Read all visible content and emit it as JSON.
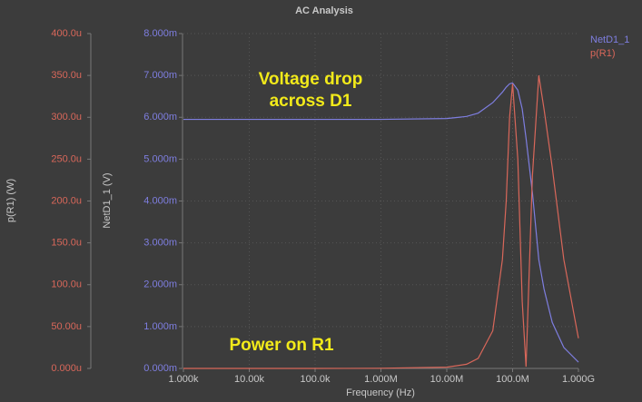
{
  "chart_data": {
    "type": "line",
    "title": "AC Analysis",
    "xlabel": "Frequency (Hz)",
    "ylabel": "NetD1_1 (V)",
    "y2label": "p(R1) (W)",
    "xscale": "log",
    "grid": true,
    "legend": "top-right",
    "xlim": [
      1000,
      1000000000
    ],
    "xticks": [
      {
        "value": 1000,
        "label": "1.000k"
      },
      {
        "value": 10000,
        "label": "10.00k"
      },
      {
        "value": 100000,
        "label": "100.0k"
      },
      {
        "value": 1000000,
        "label": "1.000M"
      },
      {
        "value": 10000000,
        "label": "10.00M"
      },
      {
        "value": 100000000,
        "label": "100.0M"
      },
      {
        "value": 1000000000,
        "label": "1.000G"
      }
    ],
    "ylim": [
      0,
      0.008
    ],
    "yticks": [
      {
        "value": 0,
        "label": "0.000m"
      },
      {
        "value": 0.001,
        "label": "1.000m"
      },
      {
        "value": 0.002,
        "label": "2.000m"
      },
      {
        "value": 0.003,
        "label": "3.000m"
      },
      {
        "value": 0.004,
        "label": "4.000m"
      },
      {
        "value": 0.005,
        "label": "5.000m"
      },
      {
        "value": 0.006,
        "label": "6.000m"
      },
      {
        "value": 0.007,
        "label": "7.000m"
      },
      {
        "value": 0.008,
        "label": "8.000m"
      }
    ],
    "y2lim": [
      0,
      0.0004
    ],
    "y2ticks": [
      {
        "value": 0,
        "label": "0.000u"
      },
      {
        "value": 5e-05,
        "label": "50.00u"
      },
      {
        "value": 0.0001,
        "label": "100.0u"
      },
      {
        "value": 0.00015,
        "label": "150.0u"
      },
      {
        "value": 0.0002,
        "label": "200.0u"
      },
      {
        "value": 0.00025,
        "label": "250.0u"
      },
      {
        "value": 0.0003,
        "label": "300.0u"
      },
      {
        "value": 0.00035,
        "label": "350.0u"
      },
      {
        "value": 0.0004,
        "label": "400.0u"
      }
    ],
    "x": [
      1000,
      10000,
      100000,
      1000000,
      10000000,
      20000000,
      30000000,
      50000000,
      70000000,
      80000000,
      90000000,
      100000000,
      120000000,
      140000000,
      160000000,
      200000000,
      250000000,
      300000000,
      400000000,
      600000000,
      1000000000
    ],
    "series": [
      {
        "name": "NetD1_1",
        "color": "#7e7ee0",
        "values": [
          0.00595,
          0.00595,
          0.00595,
          0.00595,
          0.00597,
          0.00602,
          0.0061,
          0.00635,
          0.0066,
          0.00672,
          0.0068,
          0.00682,
          0.00665,
          0.0062,
          0.0055,
          0.0042,
          0.0026,
          0.0019,
          0.0011,
          0.0005,
          0.00015
        ]
      },
      {
        "name": "p(R1)",
        "color": "#d9675a",
        "axis": "y2",
        "values": [
          0,
          0,
          0,
          2e-07,
          1.5e-06,
          5e-06,
          1.2e-05,
          4.5e-05,
          0.00013,
          0.0002,
          0.0003,
          0.00034,
          0.00025,
          8e-05,
          2e-06,
          0.00023,
          0.00035,
          0.00031,
          0.00024,
          0.00013,
          3.6e-05
        ]
      }
    ],
    "annotations": [
      {
        "lines": [
          "Voltage drop",
          "across D1"
        ]
      },
      {
        "lines": [
          "Power on R1"
        ]
      }
    ]
  }
}
